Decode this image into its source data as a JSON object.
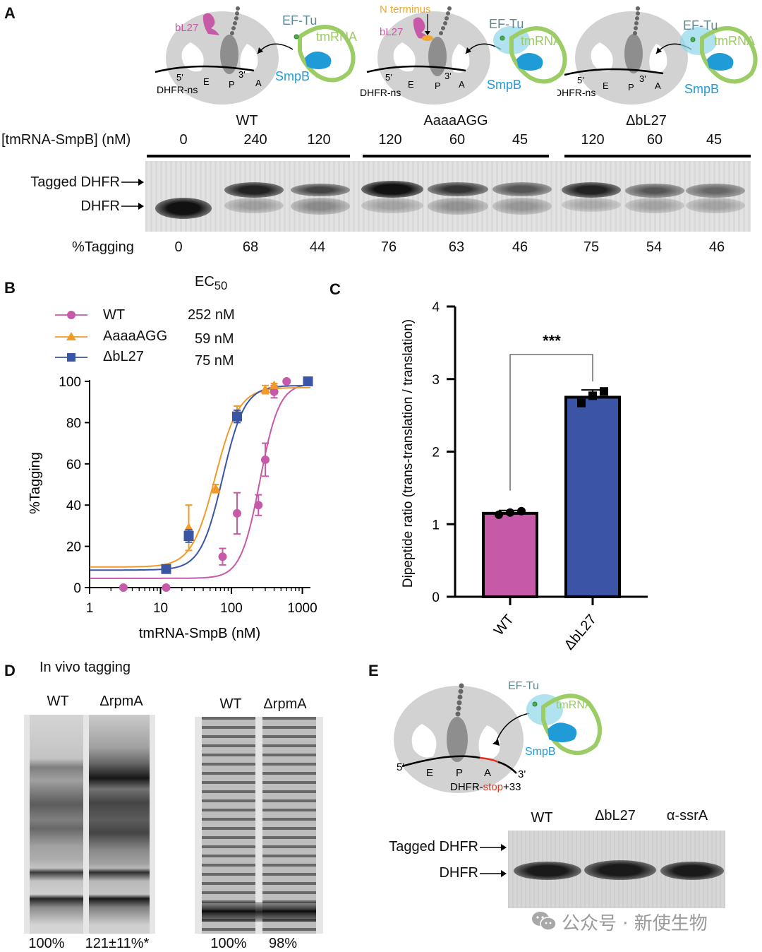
{
  "panel_labels": {
    "a": "A",
    "b": "B",
    "c": "C",
    "d": "D",
    "e": "E"
  },
  "panel_a": {
    "schematic_labels": {
      "bl27": "bL27",
      "eftu": "EF-Tu",
      "tmrna": "tmRNA",
      "smpb": "SmpB",
      "n_terminus": "N terminus",
      "mrna": "DHFR-ns",
      "five_prime": "5'",
      "three_prime": "3'",
      "site_e": "E",
      "site_p": "P",
      "site_a": "A"
    },
    "groups": [
      "WT",
      "AaaaAGG",
      "ΔbL27"
    ],
    "conc_header": "[tmRNA-SmpB] (nM)",
    "concentrations": [
      "0",
      "240",
      "120",
      "120",
      "60",
      "45",
      "120",
      "60",
      "45"
    ],
    "gel_labels": {
      "tagged": "Tagged DHFR",
      "dhfr": "DHFR"
    },
    "tagging_header": "%Tagging",
    "tagging": [
      "0",
      "68",
      "44",
      "76",
      "63",
      "46",
      "75",
      "54",
      "46"
    ],
    "colors": {
      "wt": "#c75aa8",
      "eftu": "#8fd6e8",
      "tmrna": "#9ccc65",
      "smpb": "#1f9bd7",
      "nterm": "#f0a830"
    }
  },
  "panel_b": {
    "ec50_title_main": "EC",
    "ec50_title_sub": "50",
    "legend": [
      {
        "name": "WT",
        "ec50": "252 nM"
      },
      {
        "name": "AaaaAGG",
        "ec50": "59 nM"
      },
      {
        "name": "ΔbL27",
        "ec50": "75 nM"
      }
    ],
    "xlabel": "tmRNA-SmpB (nM)",
    "ylabel": "%Tagging",
    "x_ticks": [
      "1",
      "10",
      "100",
      "1000"
    ],
    "y_ticks": [
      "0",
      "20",
      "40",
      "60",
      "80",
      "100"
    ]
  },
  "chart_data": [
    {
      "type": "scatter",
      "title": "",
      "xlabel": "tmRNA-SmpB (nM)",
      "ylabel": "%Tagging",
      "x_scale": "log",
      "xlim": [
        1,
        1300
      ],
      "ylim": [
        0,
        100
      ],
      "grid": false,
      "legend_position": "top-left",
      "series": [
        {
          "name": "WT",
          "color": "#c75aa8",
          "marker": "circle",
          "ec50": 252,
          "bottom": 4.5,
          "top": 99,
          "hill": 3.2,
          "x": [
            3,
            12,
            75,
            120,
            240,
            300,
            400,
            600
          ],
          "y": [
            0,
            0,
            15,
            36,
            40,
            62,
            95,
            100
          ],
          "err": [
            0,
            0,
            4,
            10,
            5,
            8,
            3,
            0
          ]
        },
        {
          "name": "AaaaAGG",
          "color": "#f09a2a",
          "marker": "triangle",
          "ec50": 59,
          "bottom": 10,
          "top": 97,
          "hill": 2.6,
          "x": [
            25,
            60,
            120,
            300,
            400,
            1200
          ],
          "y": [
            29,
            48,
            85,
            96,
            98,
            100
          ],
          "err": [
            11,
            2,
            3,
            2,
            1,
            0
          ]
        },
        {
          "name": "ΔbL27",
          "color": "#3a55a6",
          "marker": "square",
          "ec50": 75,
          "bottom": 8.5,
          "top": 98,
          "hill": 2.8,
          "x": [
            12,
            25,
            120,
            1200
          ],
          "y": [
            9,
            25,
            83,
            100
          ],
          "err": [
            1,
            3,
            3,
            0
          ]
        }
      ]
    },
    {
      "type": "bar",
      "title": "",
      "xlabel": "",
      "ylabel": "Dipeptide ratio (trans-translation / translation)",
      "ylim": [
        0,
        4
      ],
      "categories": [
        "WT",
        "ΔbL27"
      ],
      "values": [
        1.15,
        2.75
      ],
      "errors": [
        0.04,
        0.1
      ],
      "colors": [
        "#c75aa8",
        "#3b54a5"
      ],
      "points": [
        [
          1.13,
          1.16,
          1.18
        ],
        [
          2.67,
          2.77,
          2.83
        ]
      ],
      "y_ticks": [
        "0",
        "1",
        "2",
        "3",
        "4"
      ],
      "significance": "***"
    }
  ],
  "panel_d": {
    "title": "In vivo tagging",
    "lanes_left": [
      "WT",
      "ΔrpmA"
    ],
    "lanes_right": [
      "WT",
      "ΔrpmA"
    ],
    "values_left": [
      "100%",
      "121±11%*"
    ],
    "values_right": [
      "100%",
      "98%"
    ]
  },
  "panel_e": {
    "mrna": "DHFR-",
    "stop": "stop",
    "suffix": "+33",
    "lanes": [
      "WT",
      "ΔbL27",
      "α-ssrA"
    ],
    "gel_labels": {
      "tagged": "Tagged DHFR",
      "dhfr": "DHFR"
    }
  },
  "watermark": "公众号 · 新使生物"
}
